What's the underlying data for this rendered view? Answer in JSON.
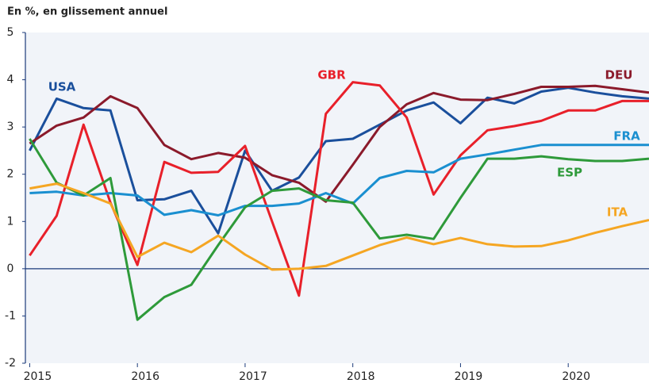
{
  "chart_data": {
    "type": "line",
    "title": "En %, en glissement annuel",
    "x": [
      2015,
      2015.25,
      2015.5,
      2015.75,
      2016,
      2016.25,
      2016.5,
      2016.75,
      2017,
      2017.25,
      2017.5,
      2017.75,
      2018,
      2018.25,
      2018.5,
      2018.75,
      2019,
      2019.25,
      2019.5,
      2019.75,
      2020,
      2020.25,
      2020.5,
      2020.75
    ],
    "xlim": [
      2014.96,
      2020.75
    ],
    "xticks": [
      2015,
      2016,
      2017,
      2018,
      2019,
      2020
    ],
    "ylim": [
      -2,
      5
    ],
    "yticks": [
      -2,
      -1,
      0,
      1,
      2,
      3,
      4,
      5
    ],
    "series": [
      {
        "name": "USA",
        "color": "#1a4f9c",
        "values": [
          2.5,
          3.6,
          3.4,
          3.35,
          1.45,
          1.47,
          1.65,
          0.75,
          2.5,
          1.65,
          1.93,
          2.7,
          2.75,
          3.05,
          3.35,
          3.52,
          3.08,
          3.62,
          3.5,
          3.75,
          3.83,
          3.73,
          3.65,
          3.6
        ]
      },
      {
        "name": "DEU",
        "color": "#8b1a2b",
        "values": [
          2.65,
          3.03,
          3.2,
          3.65,
          3.4,
          2.62,
          2.32,
          2.45,
          2.35,
          1.98,
          1.82,
          1.42,
          2.2,
          3.0,
          3.48,
          3.72,
          3.58,
          3.57,
          3.7,
          3.85,
          3.85,
          3.87,
          3.8,
          3.73
        ]
      },
      {
        "name": "GBR",
        "color": "#e8202a",
        "values": [
          0.28,
          1.12,
          3.05,
          1.4,
          0.08,
          2.26,
          2.03,
          2.05,
          2.6,
          1.0,
          -0.57,
          3.28,
          3.95,
          3.88,
          3.2,
          1.57,
          2.4,
          2.93,
          3.02,
          3.13,
          3.35,
          3.35,
          3.55,
          3.55
        ]
      },
      {
        "name": "FRA",
        "color": "#1a8fd0",
        "values": [
          1.6,
          1.63,
          1.55,
          1.6,
          1.55,
          1.14,
          1.24,
          1.13,
          1.33,
          1.33,
          1.38,
          1.6,
          1.38,
          1.92,
          2.07,
          2.04,
          2.33,
          2.42,
          2.52,
          2.62,
          2.62,
          2.62,
          2.62,
          2.62
        ]
      },
      {
        "name": "ESP",
        "color": "#2e9a3a",
        "values": [
          2.75,
          1.82,
          1.55,
          1.92,
          -1.08,
          -0.6,
          -0.34,
          0.5,
          1.3,
          1.65,
          1.7,
          1.45,
          1.4,
          0.64,
          0.72,
          0.63,
          1.5,
          2.33,
          2.33,
          2.38,
          2.32,
          2.28,
          2.28,
          2.33
        ]
      },
      {
        "name": "ITA",
        "color": "#f5a623",
        "values": [
          1.7,
          1.8,
          1.6,
          1.38,
          0.25,
          0.55,
          0.35,
          0.7,
          0.3,
          -0.02,
          0.0,
          0.06,
          0.28,
          0.5,
          0.66,
          0.52,
          0.65,
          0.52,
          0.47,
          0.48,
          0.6,
          0.76,
          0.9,
          1.03
        ]
      }
    ]
  }
}
